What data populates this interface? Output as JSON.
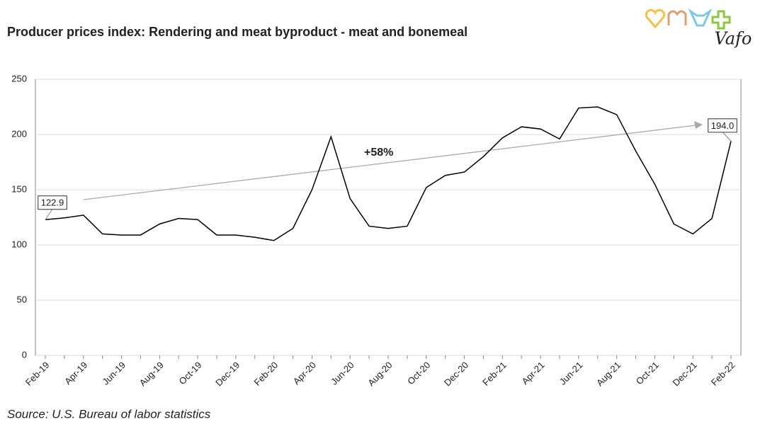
{
  "chart_data": {
    "type": "line",
    "title": "Producer prices index: Rendering and meat byproduct - meat and bonemeal",
    "categories": [
      "Feb-19",
      null,
      "Apr-19",
      null,
      "Jun-19",
      null,
      "Aug-19",
      null,
      "Oct-19",
      null,
      "Dec-19",
      null,
      "Feb-20",
      null,
      "Apr-20",
      null,
      "Jun-20",
      null,
      "Aug-20",
      null,
      "Oct-20",
      null,
      "Dec-20",
      null,
      "Feb-21",
      null,
      "Apr-21",
      null,
      "Jun-21",
      null,
      "Aug-21",
      null,
      "Oct-21",
      null,
      "Dec-21",
      null,
      "Feb-22"
    ],
    "values": [
      122.9,
      124.5,
      127,
      110,
      109,
      109,
      119,
      124,
      123,
      109,
      109,
      107,
      104,
      115,
      150,
      198,
      142,
      117,
      115,
      117,
      152,
      163,
      166,
      180,
      197,
      207,
      205,
      196,
      224,
      225,
      218,
      185,
      155,
      119,
      110,
      124,
      194.0
    ],
    "value_labels": [
      "122.9",
      null,
      null,
      null,
      null,
      null,
      null,
      null,
      null,
      null,
      null,
      null,
      null,
      null,
      null,
      null,
      null,
      null,
      null,
      null,
      null,
      null,
      null,
      null,
      null,
      null,
      null,
      null,
      null,
      null,
      null,
      null,
      null,
      null,
      null,
      null,
      "194.0"
    ],
    "color": "#000000",
    "ylim": [
      0,
      250
    ],
    "yticks": [
      0,
      50,
      100,
      150,
      200,
      250
    ],
    "grid": true,
    "annotation": "+58%",
    "source": "Source: U.S. Bureau of labor statistics",
    "logo_text": "Vafo"
  }
}
